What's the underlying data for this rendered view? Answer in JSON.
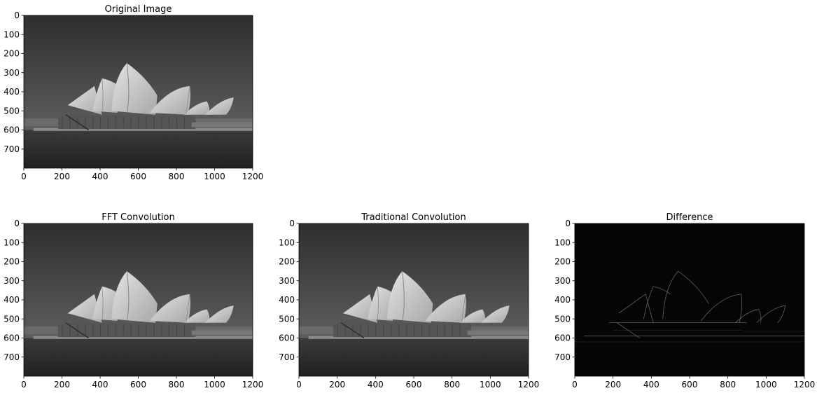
{
  "colors": {
    "background": "#ffffff",
    "axis": "#000000",
    "sky_dark": "#2e2e2e",
    "sky_light": "#6a6a6a",
    "water": "#2a2a2a",
    "sail": "#d6d6d6",
    "sail_shade": "#9a9a9a",
    "building": "#5a5a5a",
    "difference_bg": "#050505",
    "difference_edge": "#7a7a7a"
  },
  "chart_data": [
    {
      "type": "image",
      "title": "Original Image",
      "content": "grayscale-photo",
      "xlim": [
        0,
        1200
      ],
      "ylim": [
        800,
        0
      ],
      "xticks": [
        0,
        200,
        400,
        600,
        800,
        1000,
        1200
      ],
      "yticks": [
        0,
        100,
        200,
        300,
        400,
        500,
        600,
        700
      ]
    },
    {
      "type": "image",
      "title": "FFT Convolution",
      "content": "grayscale-photo",
      "xlim": [
        0,
        1200
      ],
      "ylim": [
        800,
        0
      ],
      "xticks": [
        0,
        200,
        400,
        600,
        800,
        1000,
        1200
      ],
      "yticks": [
        0,
        100,
        200,
        300,
        400,
        500,
        600,
        700
      ]
    },
    {
      "type": "image",
      "title": "Traditional Convolution",
      "content": "grayscale-photo",
      "xlim": [
        0,
        1200
      ],
      "ylim": [
        800,
        0
      ],
      "xticks": [
        0,
        200,
        400,
        600,
        800,
        1000,
        1200
      ],
      "yticks": [
        0,
        100,
        200,
        300,
        400,
        500,
        600,
        700
      ]
    },
    {
      "type": "image",
      "title": "Difference",
      "content": "edge-difference",
      "xlim": [
        0,
        1200
      ],
      "ylim": [
        800,
        0
      ],
      "xticks": [
        0,
        200,
        400,
        600,
        800,
        1000,
        1200
      ],
      "yticks": [
        0,
        100,
        200,
        300,
        400,
        500,
        600,
        700
      ]
    }
  ]
}
